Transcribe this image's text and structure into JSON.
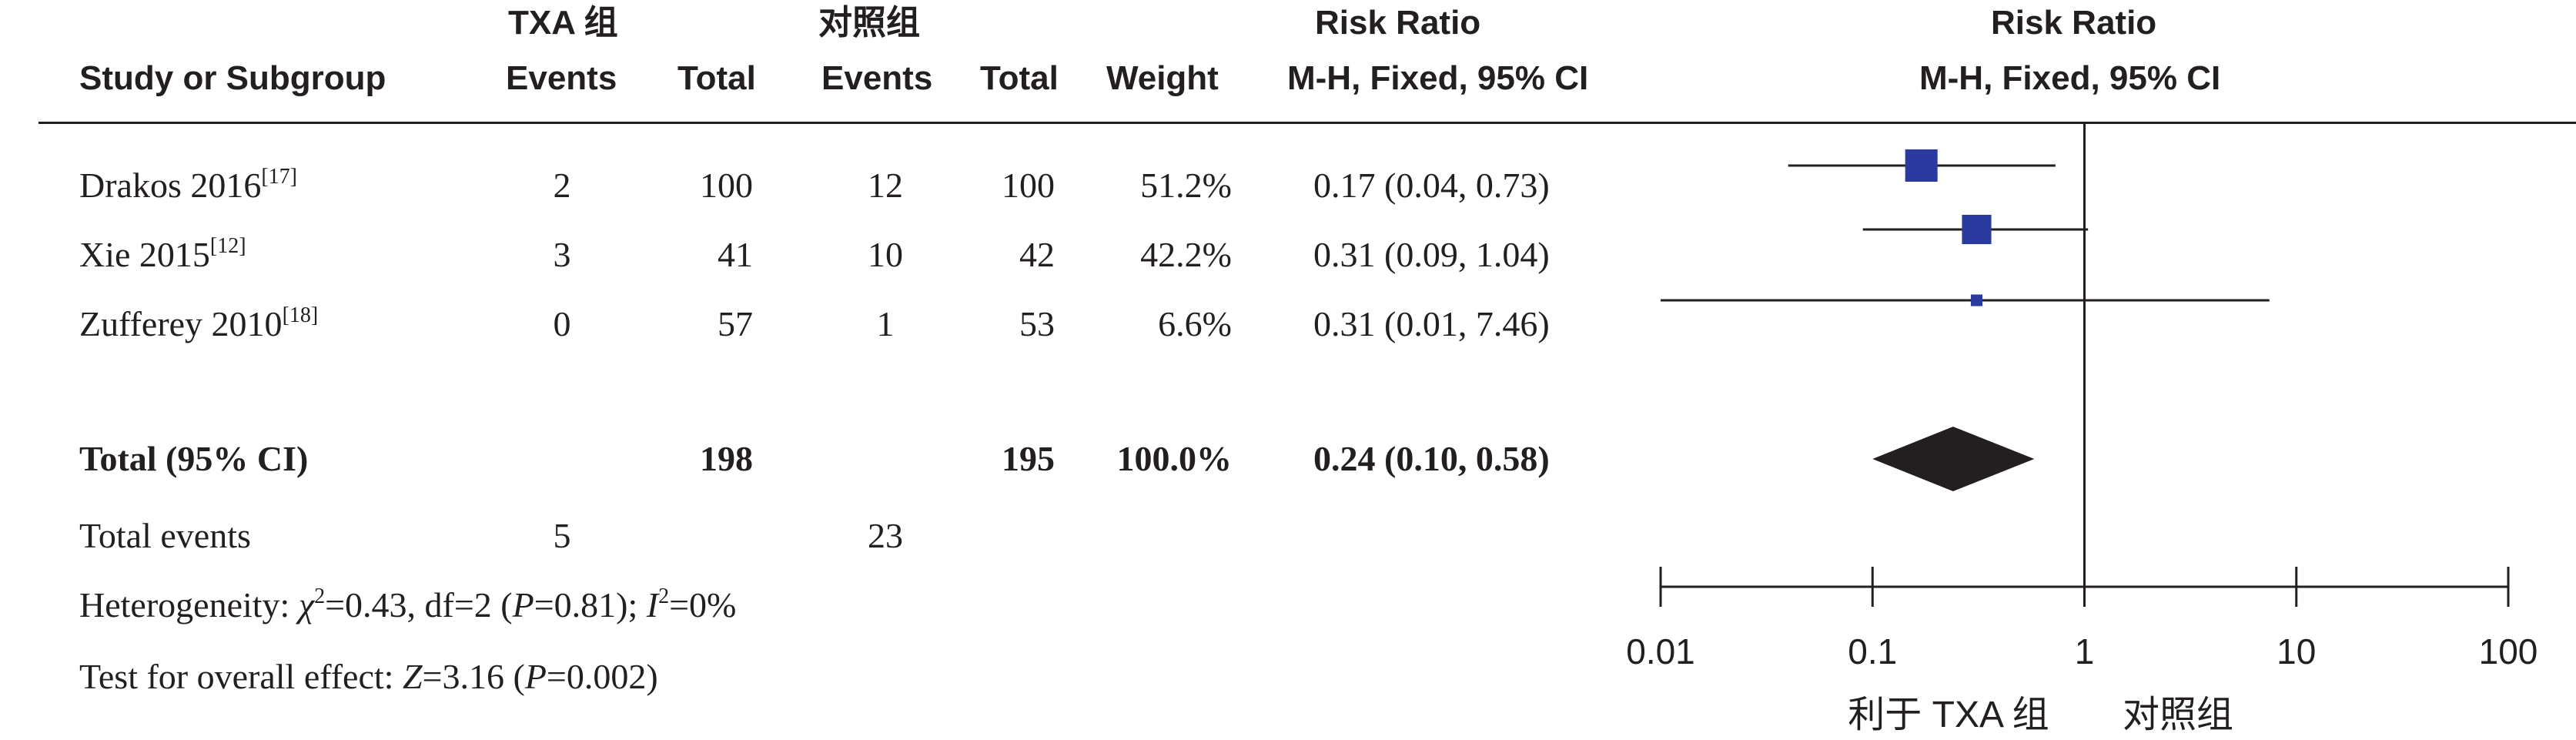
{
  "header": {
    "study_col": "Study or Subgroup",
    "group1_name": "TXA 组",
    "group2_name": "对照组",
    "events": "Events",
    "total": "Total",
    "weight": "Weight",
    "rr_title": "Risk Ratio",
    "rr_method": "M-H, Fixed, 95% CI",
    "plot_title": "Risk Ratio",
    "plot_method": "M-H, Fixed, 95% CI"
  },
  "studies": [
    {
      "name": "Drakos 2016",
      "ref": "[17]",
      "e1": "2",
      "t1": "100",
      "e2": "12",
      "t2": "100",
      "weight": "51.2%",
      "rr": "0.17 (0.04, 0.73)"
    },
    {
      "name": "Xie 2015",
      "ref": "[12]",
      "e1": "3",
      "t1": "41",
      "e2": "10",
      "t2": "42",
      "weight": "42.2%",
      "rr": "0.31 (0.09, 1.04)"
    },
    {
      "name": "Zufferey 2010",
      "ref": "[18]",
      "e1": "0",
      "t1": "57",
      "e2": "1",
      "t2": "53",
      "weight": "6.6%",
      "rr": "0.31 (0.01, 7.46)"
    }
  ],
  "total": {
    "label": "Total (95% CI)",
    "t1": "198",
    "t2": "195",
    "weight": "100.0%",
    "rr": "0.24 (0.10, 0.58)"
  },
  "total_events": {
    "label": "Total events",
    "e1": "5",
    "e2": "23"
  },
  "heterogeneity": {
    "pre": "Heterogeneity: ",
    "chi": "χ",
    "chi_sup": "2",
    "mid": "=0.43, df=2 (",
    "p": "P",
    "mid2": "=0.81); ",
    "i": "I",
    "i_sup": "2",
    "post": "=0%"
  },
  "overall": {
    "pre": "Test for overall effect: ",
    "z": "Z",
    "mid": "=3.16 (",
    "p": "P",
    "post": "=0.002)"
  },
  "chart_data": {
    "type": "scatter",
    "title": "Risk Ratio",
    "subtitle": "M-H, Fixed, 95% CI",
    "x_scale": "log",
    "xlim": [
      0.01,
      100
    ],
    "reference_line": 1,
    "ticks": [
      0.01,
      0.1,
      1,
      10,
      100
    ],
    "tick_labels": [
      "0.01",
      "0.1",
      "1",
      "10",
      "100"
    ],
    "favours_left": "利于 TXA 组",
    "favours_right": "对照组",
    "series": [
      {
        "name": "Drakos 2016",
        "rr": 0.17,
        "lower": 0.04,
        "upper": 0.73,
        "weight": 51.2
      },
      {
        "name": "Xie 2015",
        "rr": 0.31,
        "lower": 0.09,
        "upper": 1.04,
        "weight": 42.2
      },
      {
        "name": "Zufferey 2010",
        "rr": 0.31,
        "lower": 0.01,
        "upper": 7.46,
        "weight": 6.6
      }
    ],
    "pooled": {
      "rr": 0.24,
      "lower": 0.1,
      "upper": 0.58
    },
    "colors": {
      "square": "#2b3a9e",
      "diamond": "#231f20",
      "line": "#231f20"
    }
  }
}
